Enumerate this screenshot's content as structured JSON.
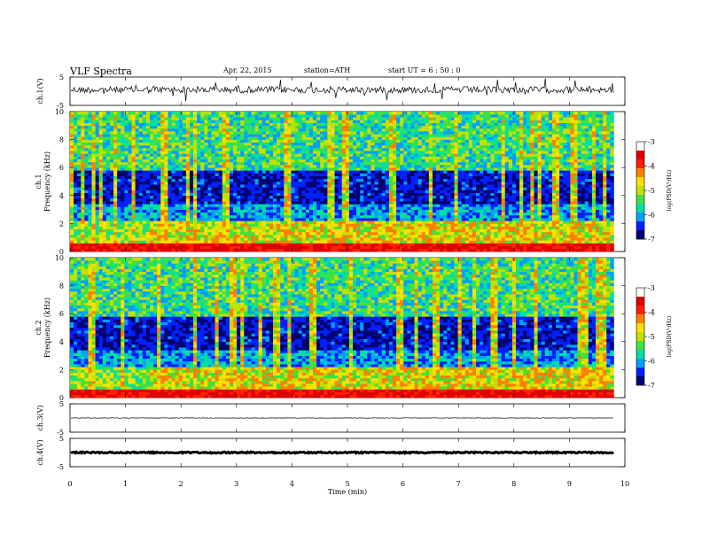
{
  "header": {
    "title": "VLF  Spectra",
    "date": "Apr. 22, 2015",
    "station": "station=ATH",
    "start": "start  UT  =   6  : 50 : 0"
  },
  "chart_data": [
    {
      "type": "line",
      "panel": "ch1-waveform",
      "ylabel": "ch.1(V)",
      "ylim": [
        -5,
        5
      ],
      "yticks": [
        "5",
        "-5"
      ],
      "x_range": [
        0,
        10
      ],
      "x_data_end": 9.8,
      "baseline": 0.5,
      "noise_amplitude": 1.2
    },
    {
      "type": "heatmap",
      "panel": "ch1-spectrogram",
      "ylabel_line1": "ch.1",
      "ylabel_line2": "Frequency  (kHz)",
      "ylim": [
        0,
        10
      ],
      "yticks": [
        "0",
        "2",
        "4",
        "6",
        "8",
        "10"
      ],
      "x_range": [
        0,
        9.8
      ],
      "colorbar": {
        "label": "log(PSD(V²/Hz)",
        "range": [
          -7,
          -3
        ],
        "ticks": [
          "-3",
          "-4",
          "-5",
          "-6",
          "-7"
        ],
        "colors": [
          "#000070",
          "#0020ff",
          "#00a0ff",
          "#00e0a0",
          "#40e040",
          "#c0e000",
          "#ffe000",
          "#ff8000",
          "#ff2000",
          "#e00000",
          "#ffffff"
        ]
      }
    },
    {
      "type": "heatmap",
      "panel": "ch2-spectrogram",
      "ylabel_line1": "ch.2",
      "ylabel_line2": "Frequency  (kHz)",
      "ylim": [
        0,
        10
      ],
      "yticks": [
        "0",
        "2",
        "4",
        "6",
        "8",
        "10"
      ],
      "x_range": [
        0,
        9.8
      ],
      "colorbar": {
        "label": "log(PSD(V²/Hz)",
        "range": [
          -7,
          -3
        ],
        "ticks": [
          "-3",
          "-4",
          "-5",
          "-6",
          "-7"
        ],
        "colors": [
          "#000070",
          "#0020ff",
          "#00a0ff",
          "#00e0a0",
          "#40e040",
          "#c0e000",
          "#ffe000",
          "#ff8000",
          "#ff2000",
          "#e00000",
          "#ffffff"
        ]
      }
    },
    {
      "type": "line",
      "panel": "ch3-waveform",
      "ylabel": "ch.3(V)",
      "ylim": [
        -5,
        5
      ],
      "yticks": [
        "5",
        "-5"
      ],
      "x_range": [
        0,
        10
      ],
      "x_data_end": 9.8,
      "baseline": 0,
      "noise_amplitude": 0.08
    },
    {
      "type": "line",
      "panel": "ch4-waveform",
      "ylabel": "ch.4(V)",
      "ylim": [
        -5,
        5
      ],
      "yticks": [
        "5",
        "-5"
      ],
      "x_range": [
        0,
        10
      ],
      "x_data_end": 9.8,
      "baseline": 0,
      "noise_amplitude": 0.25
    }
  ],
  "xaxis": {
    "label": "Time  (min)",
    "range": [
      0,
      10
    ],
    "ticks": [
      "0",
      "1",
      "2",
      "3",
      "4",
      "5",
      "6",
      "7",
      "8",
      "9",
      "10"
    ]
  }
}
